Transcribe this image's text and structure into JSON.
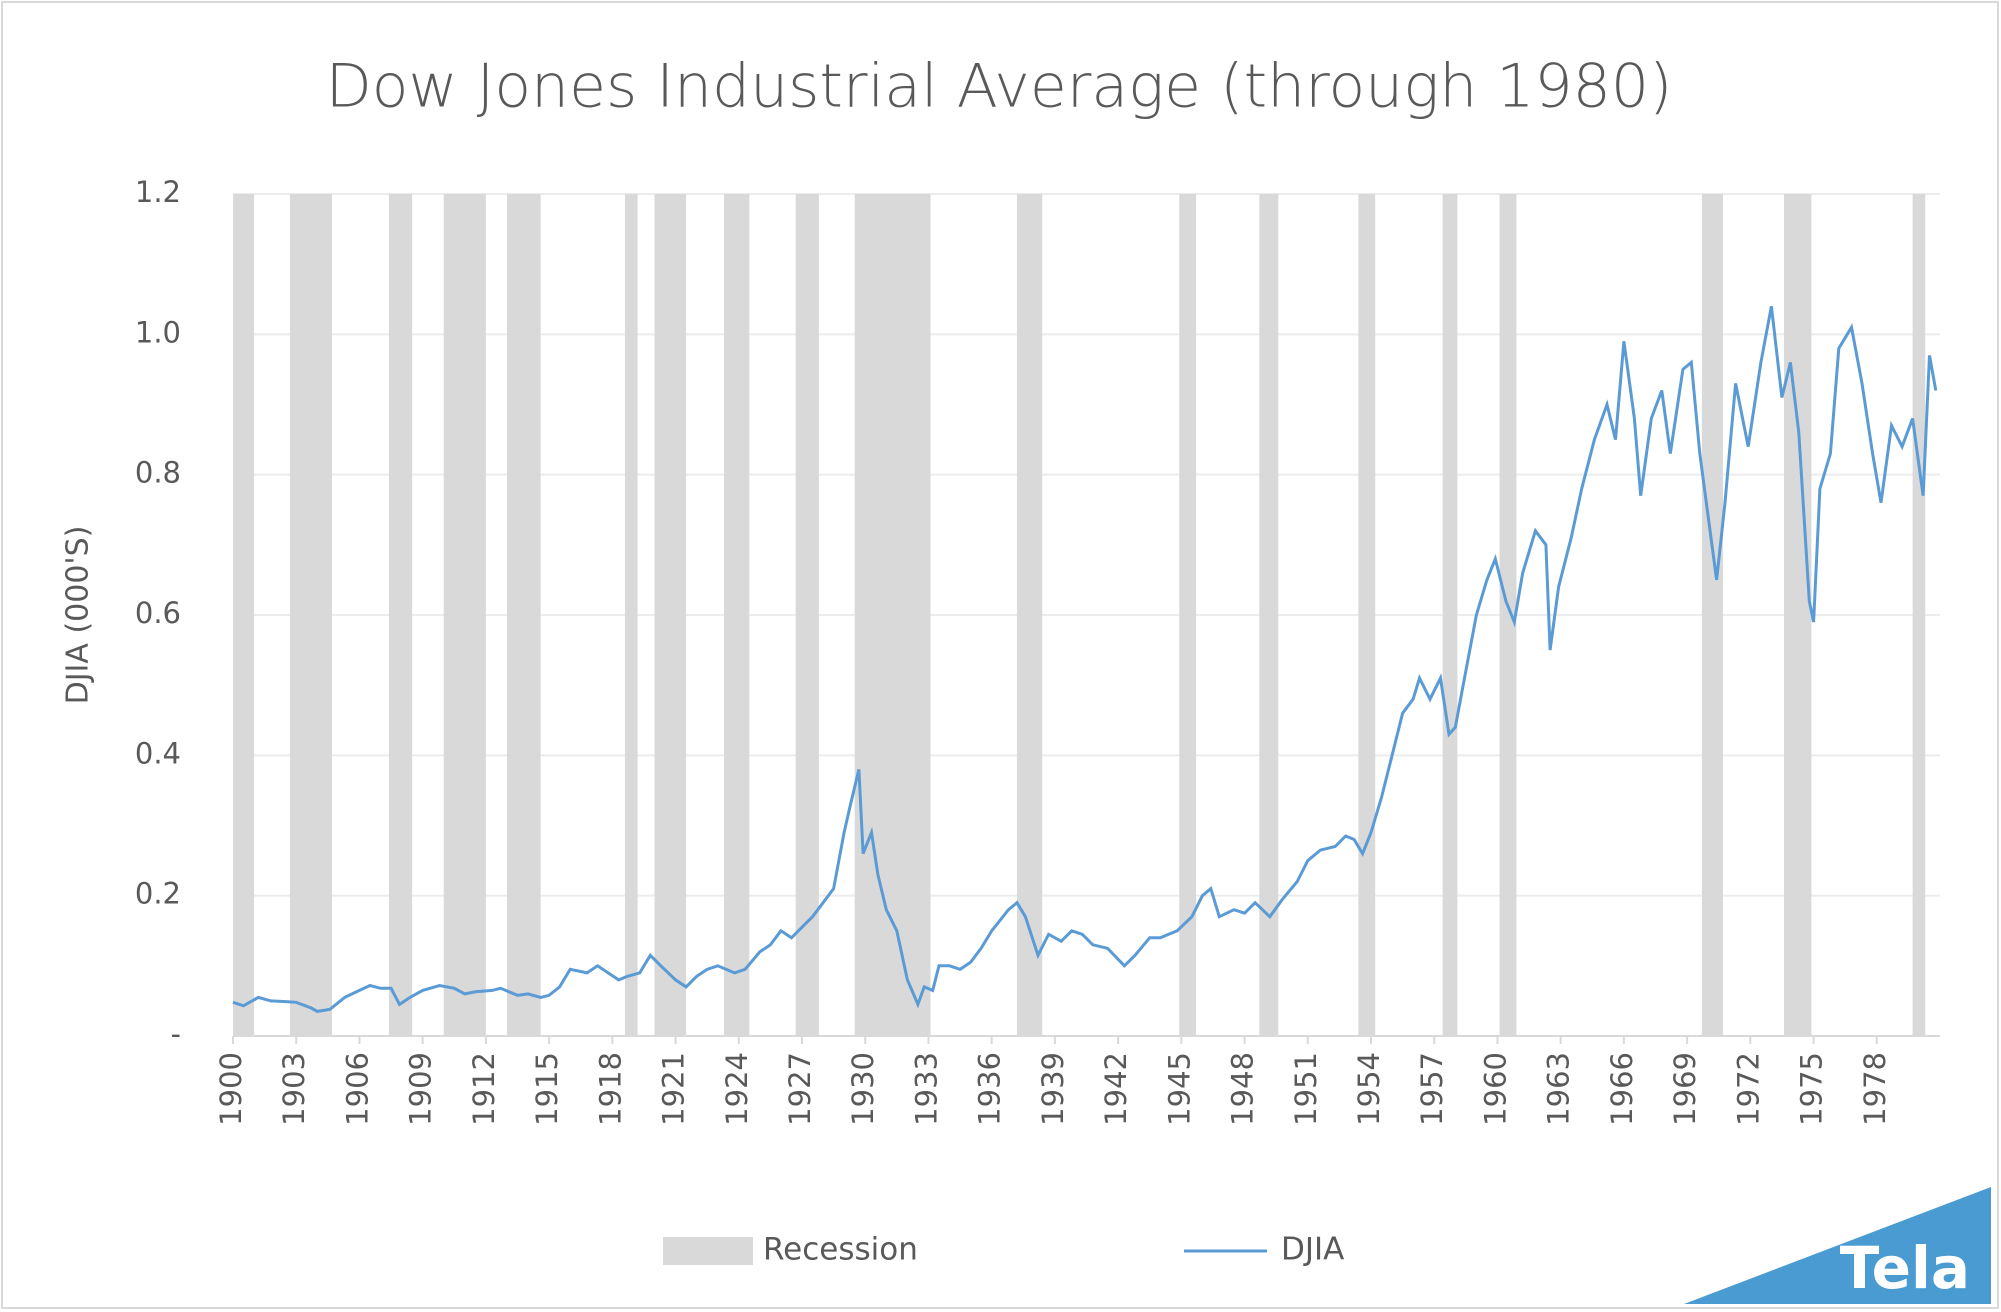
{
  "chart_data": {
    "type": "line",
    "title": "Dow Jones Industrial Average (through 1980)",
    "y_label": "DJIA (000'S)",
    "xlim": [
      1900,
      1981
    ],
    "xticks": [
      1900,
      1903,
      1906,
      1909,
      1912,
      1915,
      1918,
      1921,
      1924,
      1927,
      1930,
      1933,
      1936,
      1939,
      1942,
      1945,
      1948,
      1951,
      1954,
      1957,
      1960,
      1963,
      1966,
      1969,
      1972,
      1975,
      1978
    ],
    "ylim": [
      0,
      1.2
    ],
    "yticks": [
      {
        "value": 0,
        "label": "-"
      },
      0.2,
      0.4,
      0.6,
      0.8,
      {
        "value": 1,
        "label": "1.0"
      },
      1.2
    ],
    "grid": true,
    "legend": "bottom",
    "series": [
      {
        "name": "Recession",
        "color": "#d9d9d9",
        "periods": [
          [
            1900.0,
            1901.0
          ],
          [
            1902.7,
            1904.7
          ],
          [
            1907.4,
            1908.5
          ],
          [
            1910.0,
            1912.0
          ],
          [
            1913.0,
            1914.6
          ],
          [
            1918.6,
            1919.2
          ],
          [
            1920.0,
            1921.5
          ],
          [
            1923.3,
            1924.5
          ],
          [
            1926.7,
            1927.8
          ],
          [
            1929.5,
            1933.1
          ],
          [
            1937.2,
            1938.4
          ],
          [
            1944.9,
            1945.7
          ],
          [
            1948.7,
            1949.6
          ],
          [
            1953.4,
            1954.2
          ],
          [
            1957.4,
            1958.1
          ],
          [
            1960.1,
            1960.9
          ],
          [
            1969.7,
            1970.7
          ],
          [
            1973.6,
            1974.9
          ],
          [
            1979.7,
            1980.3
          ]
        ]
      },
      {
        "name": "DJIA",
        "color": "#5b9bd5",
        "x": [
          1900.0,
          1900.5,
          1901.2,
          1901.8,
          1902.5,
          1903.0,
          1903.7,
          1904.0,
          1904.6,
          1905.3,
          1906.0,
          1906.5,
          1907.0,
          1907.5,
          1907.9,
          1908.4,
          1909.0,
          1909.8,
          1910.5,
          1911.0,
          1911.5,
          1912.3,
          1912.7,
          1913.5,
          1914.0,
          1914.6,
          1915.0,
          1915.5,
          1916.0,
          1916.8,
          1917.3,
          1917.8,
          1918.3,
          1918.7,
          1919.3,
          1919.8,
          1920.3,
          1921.0,
          1921.5,
          1922.0,
          1922.5,
          1923.0,
          1923.8,
          1924.3,
          1925.0,
          1925.5,
          1926.0,
          1926.5,
          1927.0,
          1927.5,
          1928.0,
          1928.5,
          1929.0,
          1929.3,
          1929.7,
          1929.9,
          1930.3,
          1930.6,
          1931.0,
          1931.5,
          1932.0,
          1932.5,
          1932.8,
          1933.2,
          1933.5,
          1934.0,
          1934.5,
          1935.0,
          1935.5,
          1936.0,
          1936.8,
          1937.2,
          1937.6,
          1938.2,
          1938.7,
          1939.3,
          1939.8,
          1940.3,
          1940.8,
          1941.5,
          1942.3,
          1942.8,
          1943.5,
          1944.0,
          1944.8,
          1945.5,
          1946.0,
          1946.4,
          1946.8,
          1947.5,
          1948.0,
          1948.5,
          1949.2,
          1949.8,
          1950.5,
          1951.0,
          1951.6,
          1952.3,
          1952.8,
          1953.2,
          1953.6,
          1954.0,
          1954.5,
          1955.0,
          1955.5,
          1956.0,
          1956.3,
          1956.8,
          1957.3,
          1957.7,
          1958.0,
          1958.5,
          1959.0,
          1959.5,
          1959.9,
          1960.4,
          1960.8,
          1961.2,
          1961.8,
          1962.3,
          1962.5,
          1962.9,
          1963.5,
          1964.0,
          1964.6,
          1965.2,
          1965.6,
          1966.0,
          1966.5,
          1966.8,
          1967.3,
          1967.8,
          1968.2,
          1968.8,
          1969.2,
          1969.6,
          1970.4,
          1970.8,
          1971.3,
          1971.9,
          1972.5,
          1973.0,
          1973.5,
          1973.9,
          1974.3,
          1974.8,
          1975.0,
          1975.3,
          1975.8,
          1976.2,
          1976.8,
          1977.3,
          1977.8,
          1978.2,
          1978.7,
          1979.2,
          1979.7,
          1980.2,
          1980.5,
          1980.8
        ],
        "values": [
          0.048,
          0.043,
          0.055,
          0.05,
          0.049,
          0.048,
          0.04,
          0.035,
          0.038,
          0.055,
          0.065,
          0.072,
          0.068,
          0.068,
          0.045,
          0.055,
          0.065,
          0.072,
          0.068,
          0.06,
          0.063,
          0.065,
          0.068,
          0.058,
          0.06,
          0.055,
          0.058,
          0.07,
          0.095,
          0.09,
          0.1,
          0.09,
          0.08,
          0.085,
          0.09,
          0.115,
          0.1,
          0.08,
          0.07,
          0.085,
          0.095,
          0.1,
          0.09,
          0.095,
          0.12,
          0.13,
          0.15,
          0.14,
          0.155,
          0.17,
          0.19,
          0.21,
          0.29,
          0.33,
          0.38,
          0.26,
          0.29,
          0.23,
          0.18,
          0.15,
          0.08,
          0.045,
          0.07,
          0.065,
          0.1,
          0.1,
          0.095,
          0.105,
          0.125,
          0.15,
          0.18,
          0.19,
          0.17,
          0.115,
          0.145,
          0.135,
          0.15,
          0.145,
          0.13,
          0.125,
          0.1,
          0.115,
          0.14,
          0.14,
          0.15,
          0.17,
          0.2,
          0.21,
          0.17,
          0.18,
          0.175,
          0.19,
          0.17,
          0.195,
          0.22,
          0.25,
          0.265,
          0.27,
          0.285,
          0.28,
          0.26,
          0.29,
          0.34,
          0.4,
          0.46,
          0.48,
          0.51,
          0.48,
          0.51,
          0.43,
          0.44,
          0.52,
          0.6,
          0.65,
          0.68,
          0.62,
          0.59,
          0.66,
          0.72,
          0.7,
          0.55,
          0.64,
          0.71,
          0.78,
          0.85,
          0.9,
          0.85,
          0.99,
          0.88,
          0.77,
          0.88,
          0.92,
          0.83,
          0.95,
          0.96,
          0.83,
          0.65,
          0.76,
          0.93,
          0.84,
          0.96,
          1.04,
          0.91,
          0.96,
          0.86,
          0.62,
          0.59,
          0.78,
          0.83,
          0.98,
          1.01,
          0.93,
          0.83,
          0.76,
          0.87,
          0.84,
          0.88,
          0.77,
          0.97,
          0.92
        ]
      }
    ],
    "logo": "Tela"
  }
}
